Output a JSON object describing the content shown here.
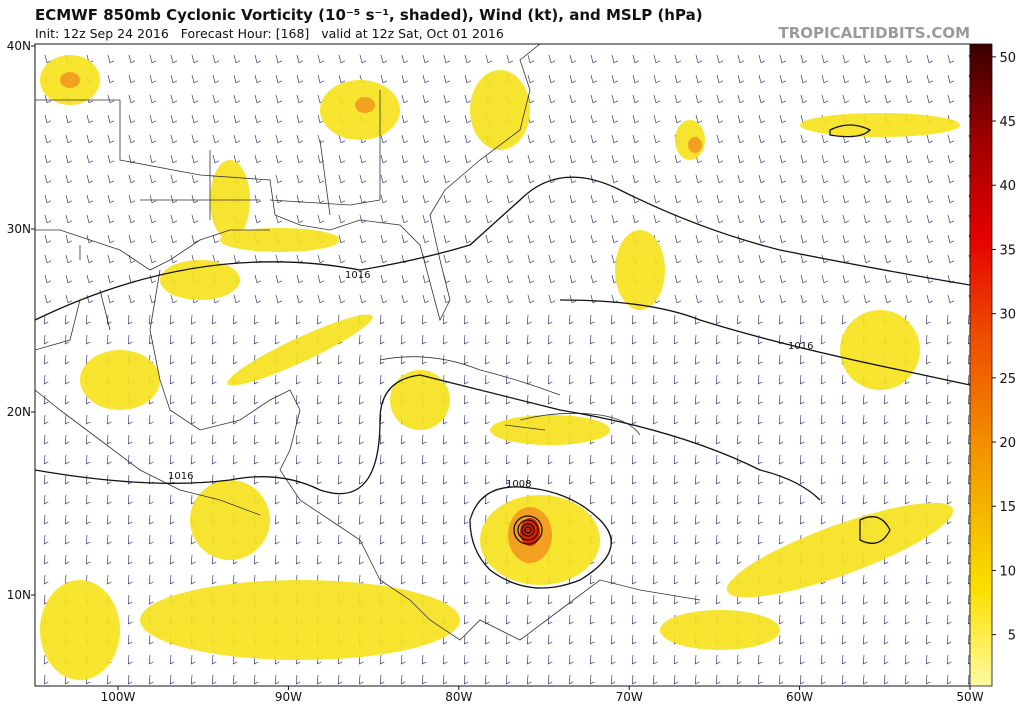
{
  "header": {
    "title": "ECMWF 850mb Cyclonic Vorticity (10⁻⁵ s⁻¹, shaded), Wind (kt), and MSLP (hPa)",
    "init": "Init: 12z Sep 24 2016   Forecast Hour: [168]   valid at 12z Sat, Oct 01 2016",
    "watermark": "TROPICALTIDBITS.COM"
  },
  "map": {
    "lat_labels": [
      "40N",
      "30N",
      "20N",
      "10N"
    ],
    "lon_labels": [
      "100W",
      "90W",
      "80W",
      "70W",
      "60W",
      "50W"
    ],
    "contour_labels": [
      "1016",
      "1016",
      "1016",
      "1008"
    ]
  },
  "colorbar": {
    "range": [
      1,
      51
    ],
    "ticks": [
      5,
      10,
      15,
      20,
      25,
      30,
      35,
      40,
      45,
      50
    ]
  }
}
